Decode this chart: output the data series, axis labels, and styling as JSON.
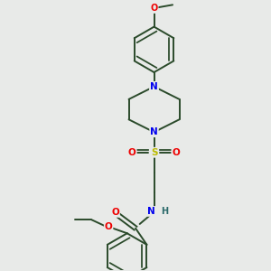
{
  "background_color": "#e8eae8",
  "bond_color": "#2a4a2a",
  "atom_colors": {
    "N": "#0000ee",
    "O": "#ee0000",
    "S": "#bbbb00",
    "C": "#2a4a2a",
    "H": "#2a6a6a"
  },
  "bond_width": 1.4,
  "font_size": 6.5,
  "fig_size": [
    3.0,
    3.0
  ],
  "dpi": 100
}
